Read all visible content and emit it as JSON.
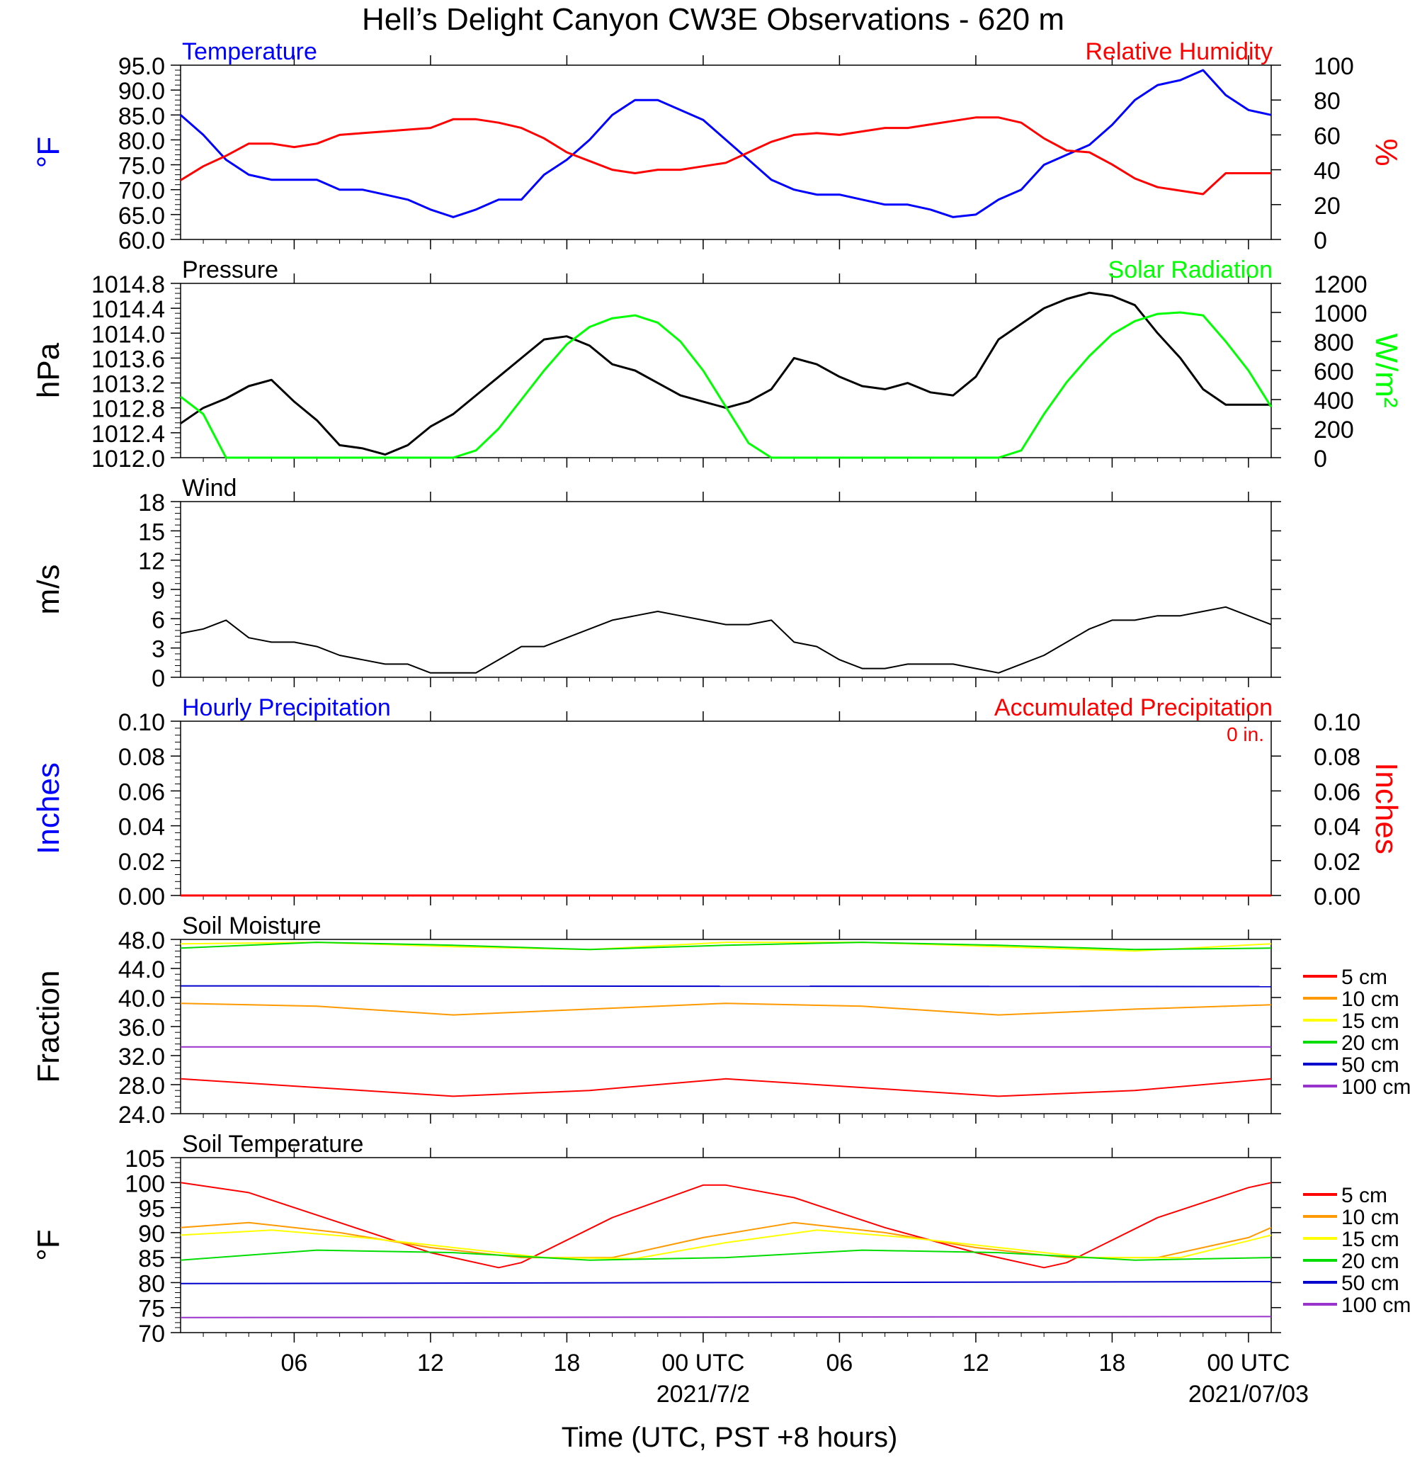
{
  "title": "Hell’s Delight Canyon CW3E Observations - 620 m",
  "time_axis": {
    "ticks": [
      {
        "hour": 6,
        "label": "06"
      },
      {
        "hour": 12,
        "label": "12"
      },
      {
        "hour": 18,
        "label": "18"
      },
      {
        "hour": 24,
        "label": "00 UTC"
      },
      {
        "hour": 30,
        "label": "06"
      },
      {
        "hour": 36,
        "label": "12"
      },
      {
        "hour": 42,
        "label": "18"
      },
      {
        "hour": 48,
        "label": "00 UTC"
      }
    ],
    "date_labels": [
      {
        "hour": 24,
        "label": "2021/7/2"
      },
      {
        "hour": 48,
        "label": "2021/07/03"
      }
    ],
    "xlabel": "Time (UTC, PST +8 hours)",
    "range_hours": [
      1,
      49
    ]
  },
  "colors": {
    "blue": "#0000ff",
    "red": "#ff0000",
    "green": "#00ff00",
    "black": "#000000",
    "orange": "#ff9900",
    "yellow": "#ffff00",
    "dkgreen": "#00dd00",
    "navy": "#0000cc",
    "purple": "#9933cc"
  },
  "legend_depths": [
    "5 cm",
    "10 cm",
    "15 cm",
    "20 cm",
    "50 cm",
    "100 cm"
  ],
  "chart_data": [
    {
      "type": "line",
      "panel": "temperature_rh",
      "left_title": "Temperature",
      "right_title": "Relative Humidity",
      "ylabel_left": "°F",
      "ylabel_right": "%",
      "ylim_left": [
        60,
        95
      ],
      "yticks_left": [
        "95.0",
        "90.0",
        "85.0",
        "80.0",
        "75.0",
        "70.0",
        "65.0",
        "60.0"
      ],
      "ylim_right": [
        0,
        100
      ],
      "yticks_right": [
        "100",
        "80",
        "60",
        "40",
        "20",
        "0"
      ],
      "series": [
        {
          "name": "Temperature",
          "color": "#0000ff",
          "axis": "left",
          "x": [
            1,
            2,
            3,
            4,
            5,
            6,
            7,
            8,
            9,
            10,
            11,
            12,
            13,
            14,
            15,
            16,
            17,
            18,
            19,
            20,
            21,
            22,
            23,
            24,
            25,
            26,
            27,
            28,
            29,
            30,
            31,
            32,
            33,
            34,
            35,
            36,
            37,
            38,
            39,
            40,
            41,
            42,
            43,
            44,
            45,
            46,
            47,
            48,
            49
          ],
          "y": [
            85,
            81,
            76,
            73,
            72,
            72,
            72,
            70,
            70,
            69,
            68,
            66,
            64.5,
            66,
            68,
            68,
            73,
            76,
            80,
            85,
            88,
            88,
            86,
            84,
            80,
            76,
            72,
            70,
            69,
            69,
            68,
            67,
            67,
            66,
            64.5,
            65,
            68,
            70,
            75,
            77,
            79,
            83,
            88,
            91,
            92,
            94,
            89,
            86,
            85
          ]
        },
        {
          "name": "Relative Humidity",
          "color": "#ff0000",
          "axis": "right",
          "x": [
            1,
            2,
            3,
            4,
            5,
            6,
            7,
            8,
            9,
            10,
            11,
            12,
            13,
            14,
            15,
            16,
            17,
            18,
            19,
            20,
            21,
            22,
            23,
            24,
            25,
            26,
            27,
            28,
            29,
            30,
            31,
            32,
            33,
            34,
            35,
            36,
            37,
            38,
            39,
            40,
            41,
            42,
            43,
            44,
            45,
            46,
            47,
            48,
            49
          ],
          "y": [
            34,
            42,
            48,
            55,
            55,
            53,
            55,
            60,
            61,
            62,
            63,
            64,
            69,
            69,
            67,
            64,
            58,
            50,
            45,
            40,
            38,
            40,
            40,
            42,
            44,
            50,
            56,
            60,
            61,
            60,
            62,
            64,
            64,
            66,
            68,
            70,
            70,
            67,
            58,
            51,
            50,
            43,
            35,
            30,
            28,
            26,
            38,
            38,
            38
          ]
        }
      ]
    },
    {
      "type": "line",
      "panel": "pressure_solar",
      "left_title": "Pressure",
      "right_title": "Solar Radiation",
      "ylabel_left": "hPa",
      "ylabel_right": "W/m²",
      "ylim_left": [
        1012.0,
        1014.8
      ],
      "yticks_left": [
        "1014.8",
        "1014.4",
        "1014.0",
        "1013.6",
        "1013.2",
        "1012.8",
        "1012.4",
        "1012.0"
      ],
      "ylim_right": [
        0,
        1200
      ],
      "yticks_right": [
        "1200",
        "1000",
        "800",
        "600",
        "400",
        "200",
        "0"
      ],
      "series": [
        {
          "name": "Pressure",
          "color": "#000000",
          "axis": "left",
          "x": [
            1,
            2,
            3,
            4,
            5,
            6,
            7,
            8,
            9,
            10,
            11,
            12,
            13,
            14,
            15,
            16,
            17,
            18,
            19,
            20,
            21,
            22,
            23,
            24,
            25,
            26,
            27,
            28,
            29,
            30,
            31,
            32,
            33,
            34,
            35,
            36,
            37,
            38,
            39,
            40,
            41,
            42,
            43,
            44,
            45,
            46,
            47,
            48,
            49
          ],
          "y": [
            1012.55,
            1012.8,
            1012.95,
            1013.15,
            1013.25,
            1012.9,
            1012.6,
            1012.2,
            1012.15,
            1012.05,
            1012.2,
            1012.5,
            1012.7,
            1013.0,
            1013.3,
            1013.6,
            1013.9,
            1013.95,
            1013.8,
            1013.5,
            1013.4,
            1013.2,
            1013.0,
            1012.9,
            1012.8,
            1012.9,
            1013.1,
            1013.6,
            1013.5,
            1013.3,
            1013.15,
            1013.1,
            1013.2,
            1013.05,
            1013.0,
            1013.3,
            1013.9,
            1014.15,
            1014.4,
            1014.55,
            1014.65,
            1014.6,
            1014.45,
            1014.0,
            1013.6,
            1013.1,
            1012.85,
            1012.85,
            1012.85
          ]
        },
        {
          "name": "Solar Radiation",
          "color": "#00ff00",
          "axis": "right",
          "x": [
            1,
            2,
            3,
            4,
            5,
            6,
            7,
            8,
            9,
            10,
            11,
            12,
            13,
            14,
            15,
            16,
            17,
            18,
            19,
            20,
            21,
            22,
            23,
            24,
            25,
            26,
            27,
            28,
            29,
            30,
            31,
            32,
            33,
            34,
            35,
            36,
            37,
            38,
            39,
            40,
            41,
            42,
            43,
            44,
            45,
            46,
            47,
            48,
            49
          ],
          "y": [
            420,
            300,
            0,
            0,
            0,
            0,
            0,
            0,
            0,
            0,
            0,
            0,
            0,
            50,
            200,
            400,
            600,
            780,
            900,
            960,
            980,
            930,
            800,
            600,
            350,
            100,
            0,
            0,
            0,
            0,
            0,
            0,
            0,
            0,
            0,
            0,
            0,
            50,
            300,
            520,
            700,
            850,
            940,
            990,
            1000,
            980,
            800,
            600,
            350
          ]
        }
      ]
    },
    {
      "type": "line",
      "panel": "wind",
      "left_title": "Wind",
      "ylabel_left": "m/s",
      "ylim_left": [
        0,
        20
      ],
      "yticks_left": [
        "18",
        "15",
        "12",
        "9",
        "6",
        "3",
        "0"
      ],
      "series": [
        {
          "name": "Wind",
          "color": "#000000",
          "axis": "left",
          "x": [
            1,
            2,
            3,
            4,
            5,
            6,
            7,
            8,
            9,
            10,
            11,
            12,
            13,
            14,
            15,
            16,
            17,
            18,
            19,
            20,
            21,
            22,
            23,
            24,
            25,
            26,
            27,
            28,
            29,
            30,
            31,
            32,
            33,
            34,
            35,
            36,
            37,
            38,
            39,
            40,
            41,
            42,
            43,
            44,
            45,
            46,
            47,
            48,
            49
          ],
          "y": [
            5,
            5.5,
            6.5,
            4.5,
            4,
            4,
            3.5,
            2.5,
            2,
            1.5,
            1.5,
            0.5,
            0.5,
            0.5,
            2,
            3.5,
            3.5,
            4.5,
            5.5,
            6.5,
            7,
            7.5,
            7,
            6.5,
            6,
            6,
            6.5,
            4,
            3.5,
            2,
            1,
            1,
            1.5,
            1.5,
            1.5,
            1,
            0.5,
            1.5,
            2.5,
            4,
            5.5,
            6.5,
            6.5,
            7,
            7,
            7.5,
            8,
            7,
            6
          ]
        }
      ]
    },
    {
      "type": "line",
      "panel": "precipitation",
      "left_title": "Hourly Precipitation",
      "right_title": "Accumulated Precipitation",
      "annotation": "0 in.",
      "ylabel_left": "Inches",
      "ylabel_right": "Inches",
      "ylim_left": [
        0,
        0.1
      ],
      "yticks_left": [
        "0.10",
        "0.08",
        "0.06",
        "0.04",
        "0.02",
        "0.00"
      ],
      "ylim_right": [
        0,
        0.1
      ],
      "yticks_right": [
        "0.10",
        "0.08",
        "0.06",
        "0.04",
        "0.02",
        "0.00"
      ],
      "series": [
        {
          "name": "Accumulated Precipitation",
          "color": "#ff0000",
          "axis": "left",
          "x": [
            1,
            49
          ],
          "y": [
            0,
            0
          ]
        }
      ]
    },
    {
      "type": "line",
      "panel": "soil_moisture",
      "left_title": "Soil Moisture",
      "ylabel_left": "Fraction",
      "ylim_left": [
        24,
        48
      ],
      "yticks_left": [
        "48.0",
        "44.0",
        "40.0",
        "36.0",
        "32.0",
        "28.0",
        "24.0"
      ],
      "legend": [
        "5 cm",
        "10 cm",
        "15 cm",
        "20 cm",
        "50 cm",
        "100 cm"
      ],
      "series": [
        {
          "name": "5 cm",
          "color": "#ff0000",
          "x": [
            1,
            7,
            13,
            19,
            25,
            31,
            37,
            43,
            49
          ],
          "y": [
            28.8,
            27.6,
            26.4,
            27.2,
            28.8,
            27.6,
            26.4,
            27.2,
            28.8
          ]
        },
        {
          "name": "10 cm",
          "color": "#ff9900",
          "x": [
            1,
            7,
            13,
            19,
            25,
            31,
            37,
            43,
            49
          ],
          "y": [
            39.2,
            38.8,
            37.6,
            38.4,
            39.2,
            38.8,
            37.6,
            38.4,
            39.0
          ]
        },
        {
          "name": "15 cm",
          "color": "#ffff00",
          "x": [
            1,
            7,
            13,
            19,
            25,
            31,
            37,
            43,
            49
          ],
          "y": [
            47.4,
            47.6,
            47.0,
            46.6,
            47.6,
            47.6,
            47.0,
            46.4,
            47.4
          ]
        },
        {
          "name": "20 cm",
          "color": "#00dd00",
          "x": [
            1,
            7,
            13,
            19,
            25,
            31,
            37,
            43,
            49
          ],
          "y": [
            46.8,
            47.6,
            47.2,
            46.6,
            47.2,
            47.6,
            47.2,
            46.6,
            46.8
          ]
        },
        {
          "name": "50 cm",
          "color": "#0000cc",
          "x": [
            1,
            49
          ],
          "y": [
            41.6,
            41.5
          ]
        },
        {
          "name": "100 cm",
          "color": "#9933cc",
          "x": [
            1,
            49
          ],
          "y": [
            33.2,
            33.2
          ]
        }
      ]
    },
    {
      "type": "line",
      "panel": "soil_temperature",
      "left_title": "Soil Temperature",
      "ylabel_left": "°F",
      "ylim_left": [
        70,
        105
      ],
      "yticks_left": [
        "105",
        "100",
        "95",
        "90",
        "85",
        "80",
        "75",
        "70"
      ],
      "legend": [
        "5 cm",
        "10 cm",
        "15 cm",
        "20 cm",
        "50 cm",
        "100 cm"
      ],
      "series": [
        {
          "name": "5 cm",
          "color": "#ff0000",
          "x": [
            1,
            4,
            8,
            12,
            15,
            16,
            20,
            24,
            25,
            28,
            32,
            36,
            39,
            40,
            44,
            48,
            49
          ],
          "y": [
            100,
            98,
            92,
            86,
            83,
            84,
            93,
            99.5,
            99.5,
            97,
            91,
            86,
            83,
            84,
            93,
            99,
            100
          ]
        },
        {
          "name": "10 cm",
          "color": "#ff9900",
          "x": [
            1,
            4,
            8,
            12,
            16,
            20,
            24,
            28,
            32,
            36,
            40,
            44,
            48,
            49
          ],
          "y": [
            91,
            92,
            90,
            87,
            85,
            85,
            89,
            92,
            90,
            87,
            85,
            85,
            89,
            91
          ]
        },
        {
          "name": "15 cm",
          "color": "#ffff00",
          "x": [
            1,
            5,
            9,
            13,
            17,
            21,
            25,
            29,
            33,
            37,
            41,
            45,
            49
          ],
          "y": [
            89.5,
            90.5,
            89,
            87,
            85,
            84.8,
            88,
            90.5,
            89,
            87,
            85,
            85,
            89.5
          ]
        },
        {
          "name": "20 cm",
          "color": "#00dd00",
          "x": [
            1,
            7,
            13,
            19,
            25,
            31,
            37,
            43,
            49
          ],
          "y": [
            84.5,
            86.5,
            86,
            84.5,
            85,
            86.5,
            86,
            84.5,
            85
          ]
        },
        {
          "name": "50 cm",
          "color": "#0000cc",
          "x": [
            1,
            49
          ],
          "y": [
            79.8,
            80.2
          ]
        },
        {
          "name": "100 cm",
          "color": "#9933cc",
          "x": [
            1,
            49
          ],
          "y": [
            73.0,
            73.2
          ]
        }
      ]
    }
  ]
}
